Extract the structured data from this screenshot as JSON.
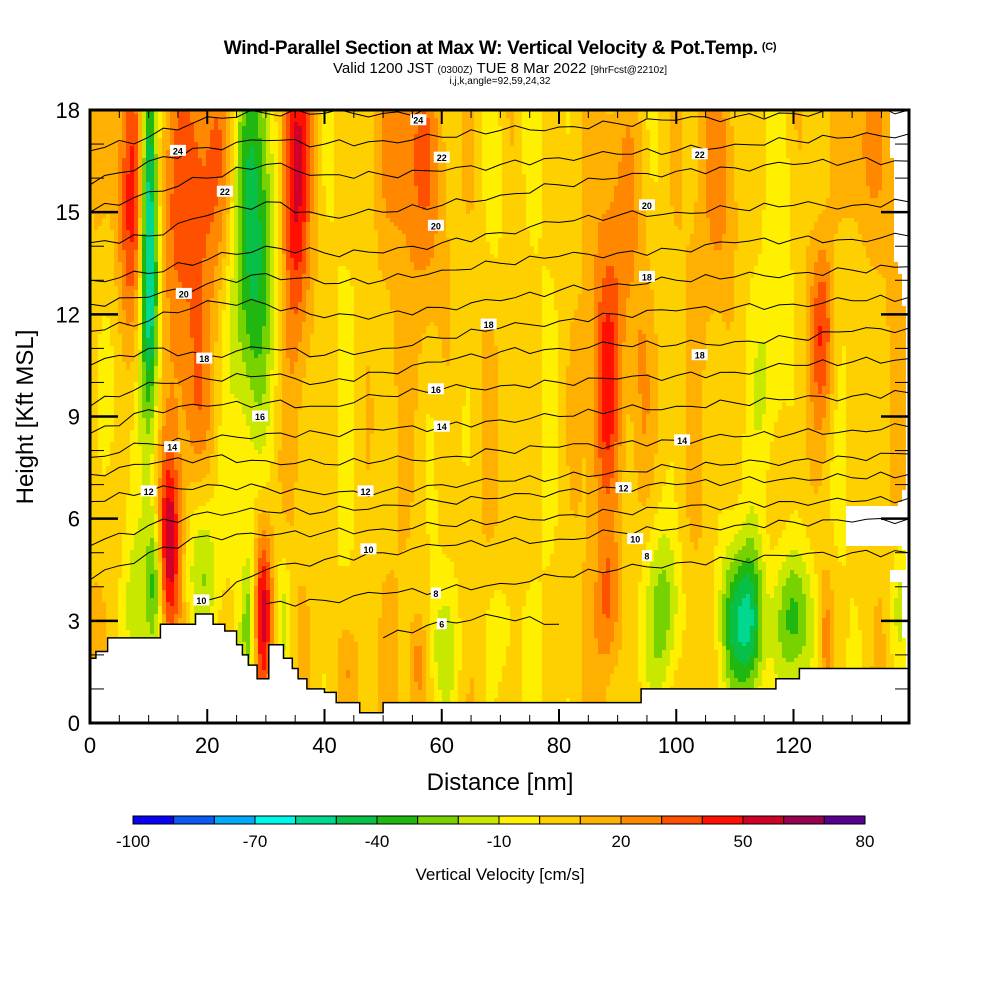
{
  "header": {
    "title": "Wind-Parallel Section at Max W: Vertical Velocity & Pot.Temp.",
    "copyright": "(C)",
    "valid_prefix": "Valid 1200 JST",
    "valid_utc": "(0300Z)",
    "valid_date": "TUE 8 Mar 2022",
    "forecast": "[9hrFcst@2210z]",
    "indices": "i,j,k,angle=92,59,24,32"
  },
  "chart_data": {
    "type": "heatmap",
    "title": "Wind-Parallel Section at Max W: Vertical Velocity & Pot.Temp.",
    "xlabel": "Distance [nm]",
    "ylabel": "Height [Kft MSL]",
    "xlim": [
      0,
      139.7
    ],
    "ylim": [
      0,
      18
    ],
    "xticks": [
      0,
      20,
      40,
      60,
      80,
      100,
      120
    ],
    "xtick_labels": [
      "0",
      "20",
      "40",
      "60",
      "80",
      "100",
      "120"
    ],
    "x_minor_step": 5,
    "yticks": [
      0,
      3,
      6,
      9,
      12,
      15,
      18
    ],
    "ytick_labels": [
      "0",
      "3",
      "6",
      "9",
      "12",
      "15",
      "18"
    ],
    "y_minor_step": 1,
    "colorbar": {
      "title": "Vertical Velocity [cm/s]",
      "boundaries": [
        -100,
        -90,
        -80,
        -70,
        -60,
        -50,
        -40,
        -30,
        -20,
        -10,
        0,
        10,
        20,
        30,
        40,
        50,
        60,
        70,
        80
      ],
      "tick_values": [
        -100,
        -70,
        -40,
        -10,
        20,
        50,
        80
      ],
      "tick_labels": [
        "-100",
        "-70",
        "-40",
        "-10",
        "20",
        "50",
        "80"
      ],
      "colors": [
        "#0a00f5",
        "#0a5af5",
        "#00aaf8",
        "#00f8e8",
        "#00d890",
        "#08c048",
        "#20b810",
        "#78d200",
        "#c8e800",
        "#fff000",
        "#ffd000",
        "#ffb000",
        "#ff8800",
        "#ff5000",
        "#ff1000",
        "#d00028",
        "#980050",
        "#580090"
      ],
      "placement": "bottom"
    },
    "background_value": 5,
    "velocity_cells": [
      {
        "x": 7,
        "y": 15,
        "sx": 1.8,
        "sy": 3.5,
        "v": 45
      },
      {
        "x": 10,
        "y": 15.5,
        "sx": 1.0,
        "sy": 3.5,
        "v": -65
      },
      {
        "x": 10.5,
        "y": 12,
        "sx": 1.3,
        "sy": 2.5,
        "v": -30
      },
      {
        "x": 15,
        "y": 15,
        "sx": 3.5,
        "sy": 3,
        "v": 25
      },
      {
        "x": 28,
        "y": 16,
        "sx": 2.5,
        "sy": 3.5,
        "v": -40
      },
      {
        "x": 27,
        "y": 12,
        "sx": 4,
        "sy": 3,
        "v": -20
      },
      {
        "x": 35,
        "y": 16,
        "sx": 1.8,
        "sy": 3.5,
        "v": 45
      },
      {
        "x": 22,
        "y": 16,
        "sx": 3,
        "sy": 3,
        "v": 25
      },
      {
        "x": 13.5,
        "y": 5.2,
        "sx": 1.4,
        "sy": 2,
        "v": 55
      },
      {
        "x": 11,
        "y": 4.2,
        "sx": 1,
        "sy": 1.5,
        "v": -35
      },
      {
        "x": 8,
        "y": 3.5,
        "sx": 1.5,
        "sy": 1.5,
        "v": -20
      },
      {
        "x": 19,
        "y": 4.5,
        "sx": 2,
        "sy": 1.8,
        "v": -30
      },
      {
        "x": 29.5,
        "y": 3.3,
        "sx": 1.1,
        "sy": 1.8,
        "v": 50
      },
      {
        "x": 27,
        "y": 3.0,
        "sx": 0.9,
        "sy": 1.5,
        "v": -25
      },
      {
        "x": 33,
        "y": 3.2,
        "sx": 1,
        "sy": 1.4,
        "v": -20
      },
      {
        "x": 5,
        "y": 10.5,
        "sx": 2.5,
        "sy": 3,
        "v": -15
      },
      {
        "x": 18,
        "y": 9.5,
        "sx": 3,
        "sy": 2,
        "v": 15
      },
      {
        "x": 55,
        "y": 17,
        "sx": 4,
        "sy": 2,
        "v": 20
      },
      {
        "x": 58,
        "y": 14,
        "sx": 3,
        "sy": 3,
        "v": 15
      },
      {
        "x": 69,
        "y": 16,
        "sx": 1.5,
        "sy": 2.5,
        "v": -15
      },
      {
        "x": 91,
        "y": 15,
        "sx": 2.5,
        "sy": 3,
        "v": 20
      },
      {
        "x": 88,
        "y": 9.8,
        "sx": 1.8,
        "sy": 2.5,
        "v": 35
      },
      {
        "x": 94,
        "y": 9.5,
        "sx": 1.5,
        "sy": 3,
        "v": 20
      },
      {
        "x": 108,
        "y": 16,
        "sx": 2.5,
        "sy": 3,
        "v": 20
      },
      {
        "x": 118,
        "y": 15,
        "sx": 2,
        "sy": 3.5,
        "v": -15
      },
      {
        "x": 116,
        "y": 10,
        "sx": 2,
        "sy": 2,
        "v": -15
      },
      {
        "x": 125,
        "y": 11.5,
        "sx": 1.5,
        "sy": 2,
        "v": 35
      },
      {
        "x": 131,
        "y": 17,
        "sx": 3,
        "sy": 2,
        "v": 20
      },
      {
        "x": 98,
        "y": 3.3,
        "sx": 2.2,
        "sy": 1.8,
        "v": -30
      },
      {
        "x": 110,
        "y": 3.0,
        "sx": 2,
        "sy": 1.5,
        "v": -40
      },
      {
        "x": 113,
        "y": 3.0,
        "sx": 1.5,
        "sy": 1.7,
        "v": -40
      },
      {
        "x": 120,
        "y": 3.0,
        "sx": 2.3,
        "sy": 1.6,
        "v": -45
      },
      {
        "x": 125.5,
        "y": 2.5,
        "sx": 1,
        "sy": 1.5,
        "v": 25
      },
      {
        "x": 138,
        "y": 3.5,
        "sx": 1.2,
        "sy": 1.5,
        "v": -20
      },
      {
        "x": 88.5,
        "y": 3.5,
        "sx": 1.5,
        "sy": 1.5,
        "v": 25
      },
      {
        "x": 60,
        "y": 2.2,
        "sx": 2,
        "sy": 1.2,
        "v": -15
      },
      {
        "x": 70,
        "y": 2.5,
        "sx": 2,
        "sy": 1.5,
        "v": -15
      },
      {
        "x": 56,
        "y": 1.7,
        "sx": 1.2,
        "sy": 1,
        "v": 20
      },
      {
        "x": 44,
        "y": 1.5,
        "sx": 2,
        "sy": 1,
        "v": 15
      }
    ],
    "terrain": {
      "x": [
        0,
        1,
        1,
        3,
        3,
        12,
        12,
        18,
        18,
        21,
        21,
        23,
        23,
        25,
        25,
        26,
        26,
        27,
        27,
        28.5,
        28.5,
        30.5,
        30.5,
        33,
        33,
        34.5,
        34.5,
        35.5,
        35.5,
        37,
        37,
        40,
        40,
        42,
        42,
        46,
        46,
        50,
        50,
        94,
        94,
        103,
        103,
        106,
        106,
        117,
        117,
        121,
        121,
        125,
        125,
        127,
        127,
        139.7
      ],
      "height": [
        1.9,
        1.9,
        2.1,
        2.1,
        2.5,
        2.5,
        2.9,
        2.9,
        3.2,
        3.2,
        2.9,
        2.9,
        2.7,
        2.7,
        2.3,
        2.3,
        2.0,
        2.0,
        1.7,
        1.7,
        1.3,
        1.3,
        2.3,
        2.3,
        1.9,
        1.9,
        1.6,
        1.6,
        1.3,
        1.3,
        1.0,
        1.0,
        0.9,
        0.9,
        0.6,
        0.6,
        0.3,
        0.3,
        0.6,
        0.6,
        1.0,
        1.0,
        1.0,
        1.0,
        1.0,
        1.0,
        1.3,
        1.3,
        1.6,
        1.6,
        1.6,
        1.6,
        1.6,
        1.6
      ]
    },
    "theta_contours": {
      "x": [
        0,
        10,
        20,
        30,
        40,
        50,
        60,
        70,
        80,
        90,
        100,
        110,
        120,
        130,
        139.7
      ],
      "lines": [
        {
          "theta": 6,
          "height": [
            null,
            null,
            null,
            null,
            null,
            2.5,
            3.0,
            3.1,
            2.9,
            null,
            null,
            null,
            null,
            null,
            null
          ]
        },
        {
          "theta": 8,
          "height": [
            null,
            null,
            null,
            3.5,
            3.6,
            3.8,
            3.9,
            4.1,
            4.3,
            4.5,
            4.7,
            4.8,
            4.9,
            5.0,
            5.0
          ]
        },
        {
          "theta": 10,
          "height": [
            null,
            null,
            3.6,
            4.5,
            4.8,
            5.0,
            5.2,
            5.3,
            5.4,
            5.6,
            5.7,
            5.8,
            5.9,
            5.9,
            6.0
          ]
        },
        {
          "theta": 10.5,
          "height": [
            4.2,
            5.0,
            5.5,
            5.5,
            5.6,
            5.7,
            5.8,
            5.9,
            6.1,
            6.2,
            6.3,
            6.4,
            6.5,
            6.5,
            6.6
          ]
        },
        {
          "theta": 11,
          "height": [
            5.2,
            5.8,
            6.2,
            6.2,
            6.2,
            6.4,
            6.5,
            6.6,
            6.8,
            6.9,
            7.0,
            7.1,
            7.2,
            7.2,
            7.3
          ]
        },
        {
          "theta": 12,
          "height": [
            6.5,
            6.8,
            7.0,
            6.9,
            6.7,
            6.8,
            7.0,
            7.1,
            7.2,
            7.4,
            7.5,
            7.6,
            7.7,
            7.8,
            7.9
          ]
        },
        {
          "theta": 13,
          "height": [
            7.3,
            7.6,
            7.8,
            7.7,
            7.6,
            7.7,
            7.8,
            8.0,
            8.1,
            8.2,
            8.3,
            8.4,
            8.5,
            8.6,
            8.7
          ]
        },
        {
          "theta": 14,
          "height": [
            7.8,
            8.2,
            8.3,
            8.5,
            8.5,
            8.6,
            8.7,
            8.9,
            9.0,
            9.2,
            9.3,
            9.4,
            9.5,
            9.6,
            9.7
          ]
        },
        {
          "theta": 15,
          "height": [
            8.5,
            9.2,
            9.3,
            9.4,
            9.3,
            9.6,
            9.8,
            9.9,
            10.0,
            10.1,
            10.2,
            10.3,
            10.5,
            10.6,
            10.7
          ]
        },
        {
          "theta": 16,
          "height": [
            9.3,
            10.0,
            10.1,
            10.2,
            10.0,
            10.3,
            10.6,
            10.9,
            11.0,
            11.1,
            11.1,
            11.2,
            11.3,
            11.5,
            11.6
          ]
        },
        {
          "theta": 17,
          "height": [
            10.5,
            11.0,
            10.8,
            11.0,
            10.8,
            11.0,
            11.3,
            11.6,
            11.8,
            12.0,
            12.1,
            12.2,
            12.3,
            12.4,
            12.5
          ]
        },
        {
          "theta": 18,
          "height": [
            11.5,
            11.8,
            12.4,
            12.3,
            11.9,
            12.0,
            12.2,
            12.4,
            12.7,
            12.9,
            13.0,
            13.1,
            13.2,
            13.3,
            13.4
          ]
        },
        {
          "theta": 19,
          "height": [
            12.3,
            12.5,
            12.9,
            13.2,
            12.9,
            13.0,
            13.3,
            13.5,
            13.7,
            13.8,
            13.9,
            14.1,
            14.2,
            14.2,
            14.3
          ]
        },
        {
          "theta": 20,
          "height": [
            13.0,
            13.2,
            13.6,
            14.0,
            13.8,
            13.8,
            14.1,
            14.4,
            14.7,
            14.9,
            15.0,
            15.1,
            15.2,
            15.2,
            15.3
          ]
        },
        {
          "theta": 21,
          "height": [
            14.1,
            14.3,
            14.9,
            15.3,
            14.9,
            15.0,
            15.2,
            15.5,
            15.8,
            16.0,
            16.2,
            16.3,
            16.4,
            16.5,
            16.5
          ]
        },
        {
          "theta": 22,
          "height": [
            15.0,
            15.6,
            16.0,
            16.4,
            16.1,
            16.1,
            16.2,
            16.4,
            16.6,
            16.7,
            16.8,
            17.0,
            17.1,
            17.2,
            17.3
          ]
        },
        {
          "theta": 23,
          "height": [
            15.8,
            16.5,
            16.9,
            17.1,
            17.0,
            17.1,
            17.2,
            17.4,
            17.5,
            17.6,
            17.7,
            17.8,
            17.9,
            18.0,
            18.0
          ]
        },
        {
          "theta": 24,
          "height": [
            16.8,
            17.2,
            17.8,
            17.9,
            17.9,
            17.9,
            18.0,
            null,
            null,
            null,
            null,
            null,
            null,
            null,
            null
          ]
        }
      ],
      "labels": [
        {
          "text": "24",
          "x": 15,
          "y": 16.8
        },
        {
          "text": "24",
          "x": 56,
          "y": 17.7
        },
        {
          "text": "22",
          "x": 23,
          "y": 15.6
        },
        {
          "text": "22",
          "x": 60,
          "y": 16.6
        },
        {
          "text": "22",
          "x": 104,
          "y": 16.7
        },
        {
          "text": "20",
          "x": 16,
          "y": 12.6
        },
        {
          "text": "20",
          "x": 59,
          "y": 14.6
        },
        {
          "text": "20",
          "x": 95,
          "y": 15.2
        },
        {
          "text": "18",
          "x": 19.5,
          "y": 10.7
        },
        {
          "text": "18",
          "x": 68,
          "y": 11.7
        },
        {
          "text": "18",
          "x": 95,
          "y": 13.1
        },
        {
          "text": "18",
          "x": 104,
          "y": 10.8
        },
        {
          "text": "16",
          "x": 29,
          "y": 9.0
        },
        {
          "text": "16",
          "x": 59,
          "y": 9.8
        },
        {
          "text": "14",
          "x": 14,
          "y": 8.1
        },
        {
          "text": "14",
          "x": 60,
          "y": 8.7
        },
        {
          "text": "14",
          "x": 101,
          "y": 8.3
        },
        {
          "text": "12",
          "x": 10,
          "y": 6.8
        },
        {
          "text": "12",
          "x": 47,
          "y": 6.8
        },
        {
          "text": "12",
          "x": 91,
          "y": 6.9
        },
        {
          "text": "10",
          "x": 47.5,
          "y": 5.1
        },
        {
          "text": "10",
          "x": 93,
          "y": 5.4
        },
        {
          "text": "10",
          "x": 19,
          "y": 3.6
        },
        {
          "text": "8",
          "x": 59,
          "y": 3.8
        },
        {
          "text": "8",
          "x": 95,
          "y": 4.9
        },
        {
          "text": "6",
          "x": 60,
          "y": 2.9
        }
      ]
    }
  }
}
